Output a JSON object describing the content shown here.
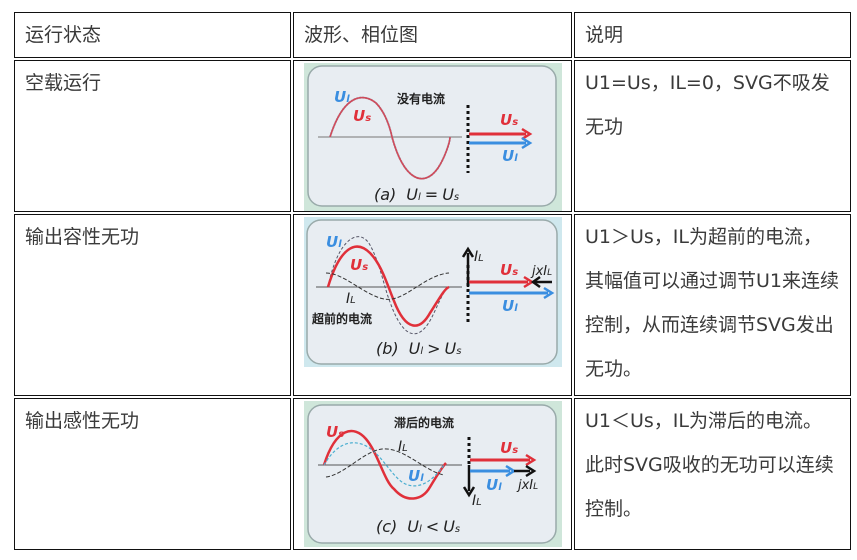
{
  "table": {
    "headers": [
      "运行状态",
      "波形、相位图",
      "说明"
    ],
    "rows": [
      {
        "state": "空载运行",
        "description": "U1=Us，IL=0，SVG不吸发无功",
        "figure": {
          "caption_prefix": "(a)",
          "relation": "=",
          "note": "没有电流",
          "labels": {
            "ul": "U",
            "ul_sub": "l",
            "us": "U",
            "us_sub": "s"
          }
        }
      },
      {
        "state": "输出容性无功",
        "description": "U1＞Us，IL为超前的电流，其幅值可以通过调节U1来连续控制，从而连续调节SVG发出无功。",
        "figure": {
          "caption_prefix": "(b)",
          "relation": ">",
          "note": "超前的电流",
          "labels": {
            "ul": "U",
            "ul_sub": "l",
            "us": "U",
            "us_sub": "s",
            "il": "I",
            "il_sub": "L",
            "jx": "jxI",
            "jx_sub": "L"
          }
        }
      },
      {
        "state": "输出感性无功",
        "description": "U1＜Us，IL为滞后的电流。此时SVG吸收的无功可以连续控制。",
        "figure": {
          "caption_prefix": "(c)",
          "relation": "<",
          "note": "滞后的电流",
          "labels": {
            "ul": "U",
            "ul_sub": "l",
            "us": "U",
            "us_sub": "s",
            "il": "I",
            "il_sub": "L",
            "jx": "jxI",
            "jx_sub": "L"
          }
        }
      }
    ]
  },
  "colors": {
    "us": "#e0303a",
    "ul": "#3a8ee0",
    "il": "#222222",
    "figure_bg": "#e8edf2",
    "figure_frame": "#cfe6da"
  }
}
